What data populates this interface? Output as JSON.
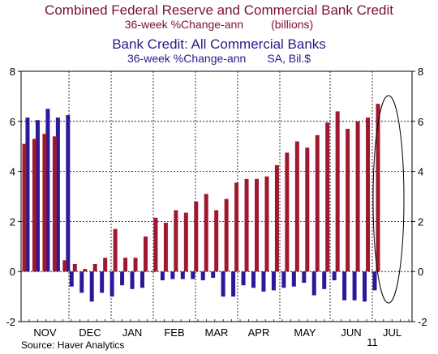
{
  "titles": {
    "line1": "Combined Federal Reserve and Commercial Bank Credit",
    "line2_left": "36-week %Change-ann",
    "line2_right": "(billions)",
    "line3": "Bank Credit: All Commercial Banks",
    "line4_left": "36-week %Change-ann",
    "line4_right": "SA, Bil.$",
    "line1_color": "#7a1030",
    "line3_color": "#2a1a8a"
  },
  "source": "Source: Haver Analytics",
  "year_label": "11",
  "chart_data": {
    "type": "bar",
    "ylim": [
      -2,
      8
    ],
    "yticks": [
      -2,
      0,
      2,
      4,
      6,
      8
    ],
    "grid": true,
    "months": [
      "NOV",
      "DEC",
      "JAN",
      "FEB",
      "MAR",
      "APR",
      "MAY",
      "JUN",
      "JUL"
    ],
    "series": [
      {
        "color": "#a01830",
        "values": [
          5.1,
          5.3,
          5.5,
          5.4,
          0.45,
          0.3,
          0.1,
          0.3,
          0.55,
          1.7,
          0.55,
          0.55,
          1.4,
          2.15,
          1.95,
          2.45,
          2.35,
          2.8,
          3.1,
          2.45,
          2.9,
          3.55,
          3.7,
          3.7,
          3.8,
          4.25,
          4.75,
          5.2,
          4.95,
          5.45,
          5.95,
          6.4,
          5.7,
          6.0,
          6.15,
          6.7
        ]
      },
      {
        "color": "#2a1a9a",
        "values": [
          6.15,
          6.05,
          6.5,
          6.15,
          6.25,
          -0.6,
          -0.85,
          -1.2,
          -0.85,
          -1.0,
          -0.55,
          -0.7,
          -0.65,
          0.0,
          -0.35,
          -0.3,
          -0.3,
          -0.3,
          -0.35,
          -0.25,
          -1.0,
          -1.0,
          -0.55,
          -0.65,
          -0.8,
          -0.75,
          -0.65,
          -0.6,
          -0.45,
          -0.95,
          -0.7,
          -0.35,
          -1.15,
          -1.15,
          -1.2,
          -0.75
        ]
      }
    ]
  }
}
